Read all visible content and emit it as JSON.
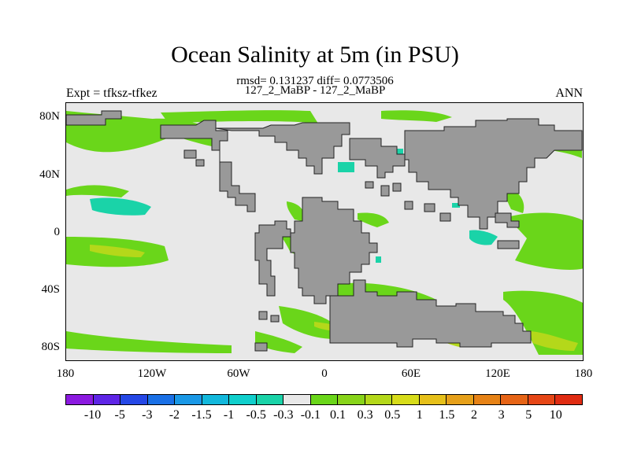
{
  "title": "Ocean Salinity at 5m (in PSU)",
  "stats": "rmsd= 0.131237 diff= 0.0773506",
  "comparison": "127_2_MaBP - 127_2_MaBP",
  "expt": "Expt = tfksz-tfkez",
  "period": "ANN",
  "lat_ticks": [
    "80N",
    "40N",
    "0",
    "40S",
    "80S"
  ],
  "lon_ticks": [
    "180",
    "120W",
    "60W",
    "0",
    "60E",
    "120E",
    "180"
  ],
  "colorbar": {
    "colors": [
      "#8b1ae0",
      "#5e25e6",
      "#2547e6",
      "#1a70e6",
      "#1a98e6",
      "#12b8dc",
      "#10cfcc",
      "#1ad3a8",
      "#e8e8e8",
      "#6ad61a",
      "#88d41a",
      "#b4d81a",
      "#d7dc1a",
      "#e6c01a",
      "#e6a01a",
      "#e68216",
      "#e66416",
      "#e64616",
      "#e02c12"
    ],
    "labels": [
      "-10",
      "-5",
      "-3",
      "-2",
      "-1.5",
      "-1",
      "-0.5",
      "-0.3",
      "-0.1",
      "0.1",
      "0.3",
      "0.5",
      "1",
      "1.5",
      "2",
      "3",
      "5",
      "10"
    ]
  },
  "map_colors": {
    "land": "#999999",
    "ocean_neutral": "#e8e8e8",
    "positive_small": "#6ad61a",
    "positive_med": "#b4d81a",
    "negative_small": "#1ad3a8"
  }
}
